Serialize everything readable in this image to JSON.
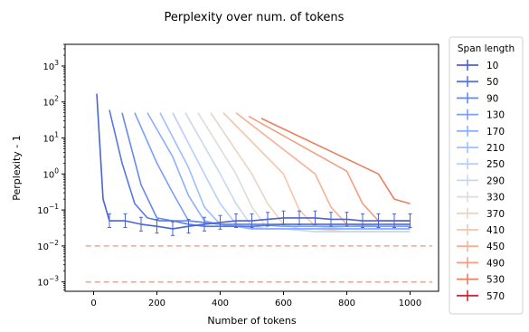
{
  "chart_data": {
    "type": "line",
    "title": "Perplexity over num. of tokens",
    "xlabel": "Number of tokens",
    "ylabel": "Perplexity - 1",
    "xlim": [
      -90,
      1090
    ],
    "ylim": [
      0.00055,
      4000
    ],
    "yscale": "log",
    "grid": false,
    "x_ticks": [
      {
        "value": 0,
        "label": "0"
      },
      {
        "value": 200,
        "label": "200"
      },
      {
        "value": 400,
        "label": "400"
      },
      {
        "value": 600,
        "label": "600"
      },
      {
        "value": 800,
        "label": "800"
      },
      {
        "value": 1000,
        "label": "1000"
      }
    ],
    "y_ticks": [
      {
        "value": 0.001,
        "base": "10",
        "exp": "−3"
      },
      {
        "value": 0.01,
        "base": "10",
        "exp": "−2"
      },
      {
        "value": 0.1,
        "base": "10",
        "exp": "−1"
      },
      {
        "value": 1,
        "base": "10",
        "exp": "0"
      },
      {
        "value": 10,
        "base": "10",
        "exp": "1"
      },
      {
        "value": 100,
        "base": "10",
        "exp": "2"
      },
      {
        "value": 1000,
        "base": "10",
        "exp": "3"
      }
    ],
    "legend": {
      "title": "Span length",
      "placement": "outside-right"
    },
    "reference_lines": [
      {
        "y": 0.01,
        "color": "#f4a28c",
        "style": "dashed"
      },
      {
        "y": 0.001,
        "color": "#f4a28c",
        "style": "dashed"
      }
    ],
    "series": [
      {
        "name": "10",
        "color": "#4b63d3",
        "x": [
          10,
          30,
          50,
          100,
          150,
          200,
          250,
          300,
          350,
          400,
          450,
          500,
          550,
          600,
          650,
          700,
          750,
          800,
          850,
          900,
          950,
          1000
        ],
        "y": [
          170,
          0.2,
          0.05,
          0.05,
          0.04,
          0.035,
          0.03,
          0.035,
          0.04,
          0.045,
          0.05,
          0.05,
          0.055,
          0.06,
          0.06,
          0.06,
          0.055,
          0.055,
          0.05,
          0.05,
          0.05,
          0.05
        ],
        "err": 0.35
      },
      {
        "name": "50",
        "color": "#5977e3",
        "x": [
          50,
          90,
          130,
          170,
          210,
          250,
          300,
          350,
          400,
          450,
          500,
          600,
          700,
          800,
          900,
          1000
        ],
        "y": [
          60,
          2,
          0.15,
          0.06,
          0.05,
          0.05,
          0.04,
          0.035,
          0.035,
          0.035,
          0.035,
          0.04,
          0.04,
          0.04,
          0.04,
          0.04
        ]
      },
      {
        "name": "90",
        "color": "#6788ee",
        "x": [
          90,
          150,
          200,
          250,
          300,
          350,
          400,
          500,
          600,
          700,
          800,
          900,
          1000
        ],
        "y": [
          50,
          0.5,
          0.06,
          0.05,
          0.05,
          0.045,
          0.04,
          0.04,
          0.04,
          0.04,
          0.04,
          0.04,
          0.04
        ]
      },
      {
        "name": "130",
        "color": "#7b9ff9",
        "x": [
          130,
          200,
          250,
          300,
          350,
          400,
          500,
          600,
          700,
          800,
          900,
          1000
        ],
        "y": [
          50,
          2,
          0.3,
          0.05,
          0.045,
          0.04,
          0.04,
          0.035,
          0.035,
          0.035,
          0.035,
          0.035
        ]
      },
      {
        "name": "170",
        "color": "#8caffe",
        "x": [
          170,
          250,
          300,
          350,
          400,
          450,
          500,
          600,
          700,
          800,
          900,
          1000
        ],
        "y": [
          50,
          3,
          0.25,
          0.05,
          0.04,
          0.035,
          0.03,
          0.03,
          0.03,
          0.03,
          0.03,
          0.03
        ]
      },
      {
        "name": "210",
        "color": "#9ebeff",
        "x": [
          210,
          300,
          350,
          400,
          450,
          500,
          600,
          700,
          800,
          900,
          1000
        ],
        "y": [
          50,
          1.5,
          0.12,
          0.04,
          0.035,
          0.03,
          0.03,
          0.03,
          0.03,
          0.03,
          0.03
        ]
      },
      {
        "name": "250",
        "color": "#b7cff9",
        "x": [
          250,
          350,
          400,
          450,
          500,
          600,
          700,
          800,
          900,
          1000
        ],
        "y": [
          50,
          1.0,
          0.15,
          0.04,
          0.03,
          0.03,
          0.03,
          0.03,
          0.03,
          0.03
        ]
      },
      {
        "name": "290",
        "color": "#c9d7f0",
        "x": [
          290,
          400,
          450,
          500,
          550,
          600,
          700,
          800,
          900,
          1000
        ],
        "y": [
          50,
          1.0,
          0.15,
          0.035,
          0.03,
          0.03,
          0.025,
          0.025,
          0.025,
          0.025
        ]
      },
      {
        "name": "330",
        "color": "#dddcdc",
        "x": [
          330,
          450,
          500,
          550,
          600,
          700,
          800,
          900,
          1000
        ],
        "y": [
          50,
          1.0,
          0.12,
          0.03,
          0.03,
          0.025,
          0.025,
          0.025,
          0.025
        ]
      },
      {
        "name": "370",
        "color": "#ebd3c6",
        "x": [
          370,
          500,
          550,
          600,
          650,
          700,
          800,
          900,
          1000
        ],
        "y": [
          50,
          1.0,
          0.15,
          0.04,
          0.03,
          0.03,
          0.025,
          0.025,
          0.025
        ]
      },
      {
        "name": "410",
        "color": "#f4c5ad",
        "x": [
          410,
          600,
          650,
          700,
          800,
          900,
          1000
        ],
        "y": [
          50,
          1.0,
          0.1,
          0.035,
          0.03,
          0.03,
          0.03
        ]
      },
      {
        "name": "450",
        "color": "#f6b194",
        "x": [
          450,
          700,
          750,
          800,
          900,
          1000
        ],
        "y": [
          50,
          1.0,
          0.12,
          0.04,
          0.035,
          0.035
        ]
      },
      {
        "name": "490",
        "color": "#f29e80",
        "x": [
          490,
          800,
          850,
          900,
          1000
        ],
        "y": [
          40,
          1.2,
          0.15,
          0.05,
          0.05
        ]
      },
      {
        "name": "530",
        "color": "#e8805f",
        "x": [
          530,
          900,
          950,
          1000
        ],
        "y": [
          35,
          1.0,
          0.2,
          0.15
        ]
      },
      {
        "name": "570",
        "color": "#c9293f",
        "x": [],
        "y": []
      }
    ]
  }
}
